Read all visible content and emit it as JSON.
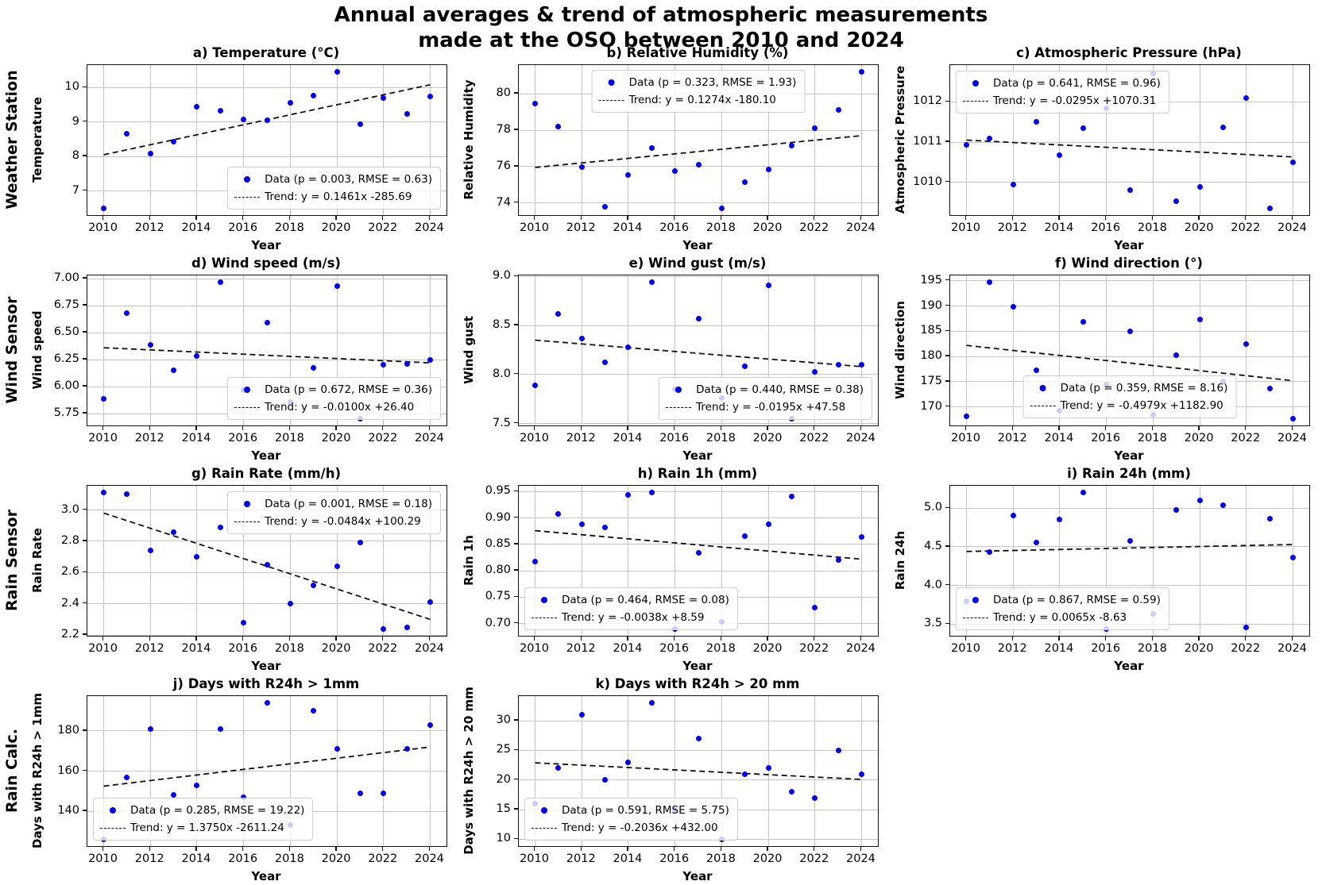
{
  "figure": {
    "suptitle_line1": "Annual averages & trend of atmospheric measurements",
    "suptitle_line2": "made at the OSO between 2010 and 2024",
    "row_labels": [
      "Weather Station",
      "Wind Sensor",
      "Rain Sensor",
      "Rain Calc."
    ],
    "colors": {
      "marker": "#0000ee",
      "trend": "#111111",
      "grid": "#c4c4c4",
      "legend_border": "#cfcfcf"
    }
  },
  "chart_data": [
    {
      "id": "a",
      "row": 0,
      "col": 0,
      "type": "scatter",
      "title": "a) Temperature (°C)",
      "xlabel": "Year",
      "ylabel": "Temperature",
      "x": [
        2010,
        2011,
        2012,
        2013,
        2014,
        2015,
        2016,
        2017,
        2018,
        2019,
        2020,
        2021,
        2022,
        2023,
        2024
      ],
      "y": [
        6.5,
        8.65,
        8.08,
        8.42,
        9.45,
        9.33,
        9.08,
        9.06,
        9.55,
        9.77,
        10.45,
        8.93,
        9.7,
        9.23,
        9.75
      ],
      "xlim": [
        2009.3,
        2024.7
      ],
      "ylim": [
        6.3,
        10.65
      ],
      "xticks": [
        2010,
        2012,
        2014,
        2016,
        2018,
        2020,
        2022,
        2024
      ],
      "yticks": [
        7,
        8,
        9,
        10
      ],
      "ytick_labels": [
        "7",
        "8",
        "9",
        "10"
      ],
      "trend": {
        "x": [
          2010,
          2024
        ],
        "y": [
          8.05,
          10.08
        ]
      },
      "legend": {
        "data_label": "Data (p = 0.003, RMSE = 0.63)",
        "trend_label": "Trend: y = 0.1461x -285.69",
        "position": "lower-right"
      },
      "grid": true
    },
    {
      "id": "b",
      "row": 0,
      "col": 1,
      "type": "scatter",
      "title": "b) Relative Humidity (%)",
      "xlabel": "Year",
      "ylabel": "Relative Humidity",
      "x": [
        2010,
        2011,
        2012,
        2013,
        2014,
        2015,
        2016,
        2017,
        2018,
        2019,
        2020,
        2021,
        2022,
        2023,
        2024
      ],
      "y": [
        79.45,
        78.2,
        75.95,
        73.8,
        75.55,
        77.0,
        75.75,
        76.1,
        73.7,
        75.15,
        75.85,
        77.15,
        78.1,
        79.1,
        81.2
      ],
      "xlim": [
        2009.3,
        2024.7
      ],
      "ylim": [
        73.33,
        81.58
      ],
      "xticks": [
        2010,
        2012,
        2014,
        2016,
        2018,
        2020,
        2022,
        2024
      ],
      "yticks": [
        74,
        76,
        78,
        80
      ],
      "ytick_labels": [
        "74",
        "76",
        "78",
        "80"
      ],
      "trend": {
        "x": [
          2010,
          2024
        ],
        "y": [
          75.95,
          77.7
        ]
      },
      "legend": {
        "data_label": "Data (p = 0.323, RMSE = 1.93)",
        "trend_label": "Trend: y = 0.1274x -180.10",
        "position": "upper-center"
      },
      "grid": true
    },
    {
      "id": "c",
      "row": 0,
      "col": 2,
      "type": "scatter",
      "title": "c) Atmospheric Pressure (hPa)",
      "xlabel": "Year",
      "ylabel": "Atmospheric Pressure",
      "x": [
        2010,
        2011,
        2012,
        2013,
        2014,
        2015,
        2016,
        2017,
        2018,
        2019,
        2020,
        2021,
        2022,
        2023,
        2024
      ],
      "y": [
        1010.93,
        1011.08,
        1009.95,
        1011.5,
        1010.67,
        1011.35,
        1011.85,
        1009.8,
        1012.72,
        1009.52,
        1009.88,
        1011.37,
        1012.1,
        1009.35,
        1010.5
      ],
      "xlim": [
        2009.3,
        2024.7
      ],
      "ylim": [
        1009.18,
        1012.92
      ],
      "xticks": [
        2010,
        2012,
        2014,
        2016,
        2018,
        2020,
        2022,
        2024
      ],
      "yticks": [
        1010,
        1011,
        1012
      ],
      "ytick_labels": [
        "1010",
        "1011",
        "1012"
      ],
      "trend": {
        "x": [
          2010,
          2024
        ],
        "y": [
          1011.05,
          1010.63
        ]
      },
      "legend": {
        "data_label": "Data (p = 0.641, RMSE = 0.96)",
        "trend_label": "Trend: y = -0.0295x +1070.31",
        "position": "upper-left"
      },
      "grid": true
    },
    {
      "id": "d",
      "row": 1,
      "col": 0,
      "type": "scatter",
      "title": "d) Wind speed (m/s)",
      "xlabel": "Year",
      "ylabel": "Wind speed",
      "x": [
        2010,
        2011,
        2012,
        2013,
        2014,
        2015,
        2016,
        2017,
        2018,
        2019,
        2020,
        2021,
        2022,
        2023,
        2024
      ],
      "y": [
        5.89,
        6.68,
        6.39,
        6.15,
        6.28,
        6.97,
        5.97,
        6.59,
        5.86,
        6.17,
        6.93,
        5.7,
        6.2,
        6.21,
        6.25
      ],
      "xlim": [
        2009.3,
        2024.7
      ],
      "ylim": [
        5.64,
        7.03
      ],
      "xticks": [
        2010,
        2012,
        2014,
        2016,
        2018,
        2020,
        2022,
        2024
      ],
      "yticks": [
        5.75,
        6.0,
        6.25,
        6.5,
        6.75,
        7.0
      ],
      "ytick_labels": [
        "5.75",
        "6.00",
        "6.25",
        "6.50",
        "6.75",
        "7.00"
      ],
      "trend": {
        "x": [
          2010,
          2024
        ],
        "y": [
          6.36,
          6.22
        ]
      },
      "legend": {
        "data_label": "Data (p = 0.672, RMSE = 0.36)",
        "trend_label": "Trend: y = -0.0100x +26.40",
        "position": "lower-right"
      },
      "grid": true
    },
    {
      "id": "e",
      "row": 1,
      "col": 1,
      "type": "scatter",
      "title": "e) Wind gust (m/s)",
      "xlabel": "Year",
      "ylabel": "Wind gust",
      "x": [
        2010,
        2011,
        2012,
        2013,
        2014,
        2015,
        2016,
        2017,
        2018,
        2019,
        2020,
        2021,
        2022,
        2023,
        2024
      ],
      "y": [
        7.89,
        8.62,
        8.37,
        8.12,
        8.28,
        8.94,
        7.85,
        8.57,
        7.76,
        8.08,
        8.91,
        7.55,
        8.03,
        8.1,
        8.1
      ],
      "xlim": [
        2009.3,
        2024.7
      ],
      "ylim": [
        7.48,
        9.01
      ],
      "xticks": [
        2010,
        2012,
        2014,
        2016,
        2018,
        2020,
        2022,
        2024
      ],
      "yticks": [
        7.5,
        8.0,
        8.5,
        9.0
      ],
      "ytick_labels": [
        "7.5",
        "8.0",
        "8.5",
        "9.0"
      ],
      "trend": {
        "x": [
          2010,
          2024
        ],
        "y": [
          8.35,
          8.08
        ]
      },
      "legend": {
        "data_label": "Data (p = 0.440, RMSE = 0.38)",
        "trend_label": "Trend: y = -0.0195x +47.58",
        "position": "lower-right"
      },
      "grid": true
    },
    {
      "id": "f",
      "row": 1,
      "col": 2,
      "type": "scatter",
      "title": "f) Wind direction (°)",
      "xlabel": "Year",
      "ylabel": "Wind direction",
      "x": [
        2010,
        2011,
        2012,
        2013,
        2014,
        2015,
        2016,
        2017,
        2018,
        2019,
        2020,
        2021,
        2022,
        2023,
        2024
      ],
      "y": [
        168.2,
        194.7,
        189.9,
        177.2,
        169.2,
        186.8,
        174.4,
        185.0,
        168.5,
        180.3,
        187.4,
        175.1,
        182.4,
        173.7,
        167.7
      ],
      "xlim": [
        2009.3,
        2024.7
      ],
      "ylim": [
        166.35,
        196.05
      ],
      "xticks": [
        2010,
        2012,
        2014,
        2016,
        2018,
        2020,
        2022,
        2024
      ],
      "yticks": [
        170,
        175,
        180,
        185,
        190,
        195
      ],
      "ytick_labels": [
        "170",
        "175",
        "180",
        "185",
        "190",
        "195"
      ],
      "trend": {
        "x": [
          2010,
          2024
        ],
        "y": [
          182.2,
          175.2
        ]
      },
      "legend": {
        "data_label": "Data (p = 0.359, RMSE = 8.16)",
        "trend_label": "Trend: y = -0.4979x +1182.90",
        "position": "lower-center"
      },
      "grid": true
    },
    {
      "id": "g",
      "row": 2,
      "col": 0,
      "type": "scatter",
      "title": "g) Rain Rate (mm/h)",
      "xlabel": "Year",
      "ylabel": "Rain Rate",
      "x": [
        2010,
        2011,
        2012,
        2013,
        2014,
        2015,
        2016,
        2017,
        2018,
        2019,
        2020,
        2021,
        2022,
        2023,
        2024
      ],
      "y": [
        3.11,
        3.1,
        2.74,
        2.86,
        2.7,
        2.89,
        2.28,
        2.65,
        2.4,
        2.52,
        2.64,
        2.79,
        2.24,
        2.25,
        2.41
      ],
      "xlim": [
        2009.3,
        2024.7
      ],
      "ylim": [
        2.195,
        3.155
      ],
      "xticks": [
        2010,
        2012,
        2014,
        2016,
        2018,
        2020,
        2022,
        2024
      ],
      "yticks": [
        2.2,
        2.4,
        2.6,
        2.8,
        3.0
      ],
      "ytick_labels": [
        "2.2",
        "2.4",
        "2.6",
        "2.8",
        "3.0"
      ],
      "trend": {
        "x": [
          2010,
          2024
        ],
        "y": [
          2.98,
          2.3
        ]
      },
      "legend": {
        "data_label": "Data (p = 0.001, RMSE = 0.18)",
        "trend_label": "Trend: y = -0.0484x +100.29",
        "position": "upper-right"
      },
      "grid": true
    },
    {
      "id": "h",
      "row": 2,
      "col": 1,
      "type": "scatter",
      "title": "h) Rain 1h (mm)",
      "xlabel": "Year",
      "ylabel": "Rain 1h",
      "x": [
        2010,
        2011,
        2012,
        2013,
        2014,
        2015,
        2016,
        2017,
        2018,
        2019,
        2020,
        2021,
        2022,
        2023,
        2024
      ],
      "y": [
        0.818,
        0.908,
        0.888,
        0.882,
        0.943,
        0.948,
        0.69,
        0.834,
        0.703,
        0.866,
        0.888,
        0.94,
        0.731,
        0.82,
        0.864
      ],
      "xlim": [
        2009.3,
        2024.7
      ],
      "ylim": [
        0.677,
        0.961
      ],
      "xticks": [
        2010,
        2012,
        2014,
        2016,
        2018,
        2020,
        2022,
        2024
      ],
      "yticks": [
        0.7,
        0.75,
        0.8,
        0.85,
        0.9,
        0.95
      ],
      "ytick_labels": [
        "0.70",
        "0.75",
        "0.80",
        "0.85",
        "0.90",
        "0.95"
      ],
      "trend": {
        "x": [
          2010,
          2024
        ],
        "y": [
          0.876,
          0.822
        ]
      },
      "legend": {
        "data_label": "Data (p = 0.464, RMSE = 0.08)",
        "trend_label": "Trend: y = -0.0038x +8.59",
        "position": "lower-left"
      },
      "grid": true
    },
    {
      "id": "i",
      "row": 2,
      "col": 2,
      "type": "scatter",
      "title": "i) Rain 24h (mm)",
      "xlabel": "Year",
      "ylabel": "Rain 24h",
      "x": [
        2010,
        2011,
        2012,
        2013,
        2014,
        2015,
        2016,
        2017,
        2018,
        2019,
        2020,
        2021,
        2022,
        2023,
        2024
      ],
      "y": [
        3.8,
        4.43,
        4.9,
        4.56,
        4.85,
        5.2,
        3.44,
        4.58,
        3.63,
        4.98,
        5.1,
        5.04,
        3.46,
        4.86,
        4.36
      ],
      "xlim": [
        2009.3,
        2024.7
      ],
      "ylim": [
        3.35,
        5.29
      ],
      "xticks": [
        2010,
        2012,
        2014,
        2016,
        2018,
        2020,
        2022,
        2024
      ],
      "yticks": [
        3.5,
        4.0,
        4.5,
        5.0
      ],
      "ytick_labels": [
        "3.5",
        "4.0",
        "4.5",
        "5.0"
      ],
      "trend": {
        "x": [
          2010,
          2024
        ],
        "y": [
          4.44,
          4.53
        ]
      },
      "legend": {
        "data_label": "Data (p = 0.867, RMSE = 0.59)",
        "trend_label": "Trend: y = 0.0065x -8.63",
        "position": "lower-left"
      },
      "grid": true
    },
    {
      "id": "j",
      "row": 3,
      "col": 0,
      "type": "scatter",
      "title": "j) Days with R24h > 1mm",
      "xlabel": "Year",
      "ylabel": "Days with R24h > 1mm",
      "x": [
        2010,
        2011,
        2012,
        2013,
        2014,
        2015,
        2016,
        2017,
        2018,
        2019,
        2020,
        2021,
        2022,
        2023,
        2024
      ],
      "y": [
        126,
        157,
        181,
        148,
        153,
        181,
        147,
        194,
        133,
        190,
        171,
        149,
        149,
        171,
        183
      ],
      "xlim": [
        2009.3,
        2024.7
      ],
      "ylim": [
        122.6,
        197.4
      ],
      "xticks": [
        2010,
        2012,
        2014,
        2016,
        2018,
        2020,
        2022,
        2024
      ],
      "yticks": [
        140,
        160,
        180
      ],
      "ytick_labels": [
        "140",
        "160",
        "180"
      ],
      "trend": {
        "x": [
          2010,
          2024
        ],
        "y": [
          152.5,
          172.0
        ]
      },
      "legend": {
        "data_label": "Data (p = 0.285, RMSE = 19.22)",
        "trend_label": "Trend: y = 1.3750x -2611.24",
        "position": "lower-left"
      },
      "grid": true
    },
    {
      "id": "k",
      "row": 3,
      "col": 1,
      "type": "scatter",
      "title": "k) Days with R24h > 20 mm",
      "xlabel": "Year",
      "ylabel": "Days with R24h > 20 mm",
      "x": [
        2010,
        2011,
        2012,
        2013,
        2014,
        2015,
        2016,
        2017,
        2018,
        2019,
        2020,
        2021,
        2022,
        2023,
        2024
      ],
      "y": [
        16,
        22,
        31,
        20,
        23,
        33,
        15,
        27,
        10,
        21,
        22,
        18,
        17,
        25,
        21
      ],
      "xlim": [
        2009.3,
        2024.7
      ],
      "ylim": [
        8.85,
        34.15
      ],
      "xticks": [
        2010,
        2012,
        2014,
        2016,
        2018,
        2020,
        2022,
        2024
      ],
      "yticks": [
        10,
        15,
        20,
        25,
        30
      ],
      "ytick_labels": [
        "10",
        "15",
        "20",
        "25",
        "30"
      ],
      "trend": {
        "x": [
          2010,
          2024
        ],
        "y": [
          22.9,
          20.1
        ]
      },
      "legend": {
        "data_label": "Data (p = 0.591, RMSE = 5.75)",
        "trend_label": "Trend: y = -0.2036x +432.00",
        "position": "lower-left"
      },
      "grid": true
    }
  ]
}
